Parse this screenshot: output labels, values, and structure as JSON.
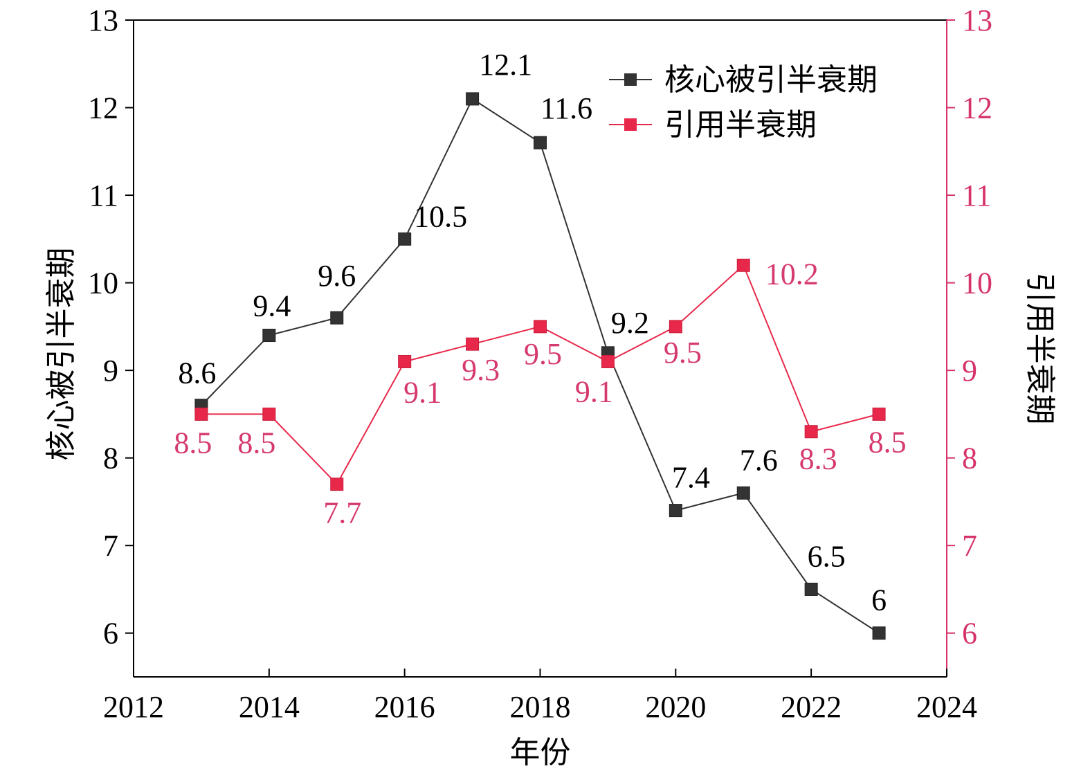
{
  "chart_data": {
    "type": "line",
    "xlabel": "年份",
    "ylabel_left": "核心被引半衰期",
    "ylabel_right": "引用半衰期",
    "xlim": [
      2012,
      2024
    ],
    "xticks": [
      2012,
      2014,
      2016,
      2018,
      2020,
      2022,
      2024
    ],
    "ylim": [
      5.5,
      13
    ],
    "yticks": [
      6,
      7,
      8,
      9,
      10,
      11,
      12,
      13
    ],
    "grid": false,
    "legend_position": "top-right",
    "x": [
      2013,
      2014,
      2015,
      2016,
      2017,
      2018,
      2019,
      2020,
      2021,
      2022,
      2023
    ],
    "series": [
      {
        "name": "核心被引半衰期",
        "axis": "left",
        "color": "#333333",
        "values": [
          8.6,
          9.4,
          9.6,
          10.5,
          12.1,
          11.6,
          9.2,
          7.4,
          7.6,
          6.5,
          6
        ],
        "labels": [
          "8.6",
          "9.4",
          "9.6",
          "10.5",
          "12.1",
          "11.6",
          "9.2",
          "7.4",
          "7.6",
          "6.5",
          "6"
        ]
      },
      {
        "name": "引用半衰期",
        "axis": "right",
        "color": "#e8284a",
        "values": [
          8.5,
          8.5,
          7.7,
          9.1,
          9.3,
          9.5,
          9.1,
          9.5,
          10.2,
          8.3,
          8.5
        ],
        "labels": [
          "8.5",
          "8.5",
          "7.7",
          "9.1",
          "9.3",
          "9.5",
          "9.1",
          "9.5",
          "10.2",
          "8.3",
          "8.5"
        ]
      }
    ],
    "colors": {
      "left_axis": "#000000",
      "right_axis": "#d6336c",
      "pink_label": "#d63a6c"
    }
  }
}
